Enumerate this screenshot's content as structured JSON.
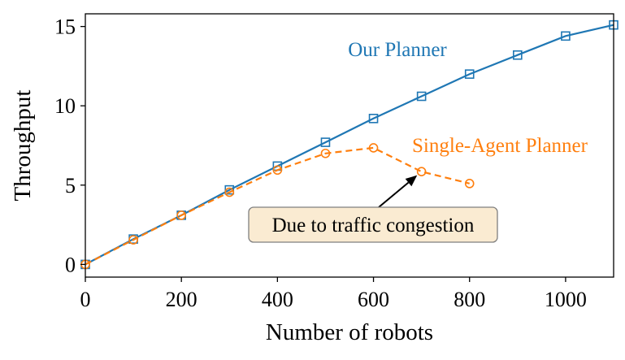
{
  "chart_data": {
    "type": "line",
    "title": "",
    "xlabel": "Number of robots",
    "ylabel": "Throughput",
    "xlim": [
      0,
      1100
    ],
    "ylim": [
      -0.8,
      15.8
    ],
    "xticks": [
      0,
      200,
      400,
      600,
      800,
      1000
    ],
    "yticks": [
      0,
      5,
      10,
      15
    ],
    "grid": false,
    "series": [
      {
        "name": "Our Planner",
        "color": "#1f77b4",
        "linestyle": "solid",
        "marker": "square",
        "x": [
          0,
          100,
          200,
          300,
          400,
          500,
          600,
          700,
          800,
          900,
          1000,
          1100
        ],
        "y": [
          0.0,
          1.6,
          3.1,
          4.7,
          6.2,
          7.7,
          9.2,
          10.6,
          12.0,
          13.2,
          14.4,
          15.1
        ]
      },
      {
        "name": "Single-Agent Planner",
        "color": "#ff7f0e",
        "linestyle": "dashed",
        "marker": "circle",
        "x": [
          0,
          100,
          200,
          300,
          400,
          500,
          600,
          700,
          800
        ],
        "y": [
          0.0,
          1.55,
          3.1,
          4.55,
          5.95,
          7.0,
          7.35,
          5.85,
          5.1
        ]
      }
    ],
    "annotations": [
      {
        "text": "Due to traffic congestion",
        "target_x": 700,
        "target_y": 5.85
      }
    ]
  }
}
